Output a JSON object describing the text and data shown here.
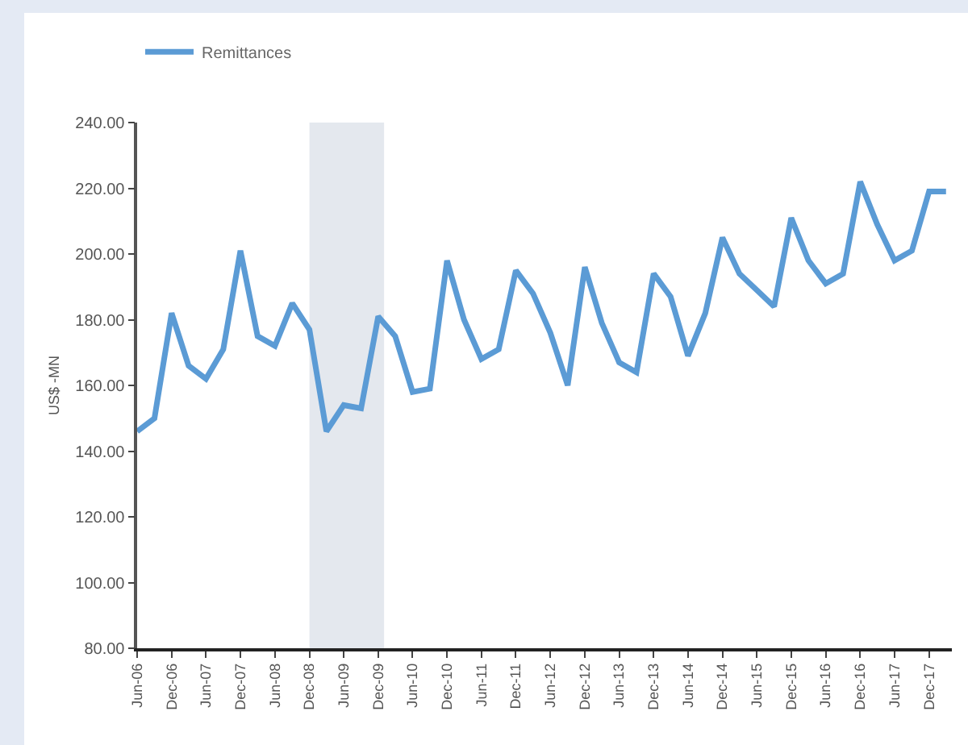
{
  "chart_data": {
    "type": "line",
    "ylabel": "US$ -MN",
    "x": [
      "2006-06",
      "2006-09",
      "2006-12",
      "2007-03",
      "2007-06",
      "2007-09",
      "2007-12",
      "2008-03",
      "2008-06",
      "2008-09",
      "2008-12",
      "2009-03",
      "2009-06",
      "2009-09",
      "2009-12",
      "2010-03",
      "2010-06",
      "2010-09",
      "2010-12",
      "2011-03",
      "2011-06",
      "2011-09",
      "2011-12",
      "2012-03",
      "2012-06",
      "2012-09",
      "2012-12",
      "2013-03",
      "2013-06",
      "2013-09",
      "2013-12",
      "2014-03",
      "2014-06",
      "2014-09",
      "2014-12",
      "2015-03",
      "2015-06",
      "2015-09",
      "2015-12",
      "2016-03",
      "2016-06",
      "2016-09",
      "2016-12",
      "2017-03",
      "2017-06",
      "2017-09",
      "2017-12",
      "2018-03"
    ],
    "series": [
      {
        "name": "Remittances",
        "color": "#5b9bd5",
        "values": [
          146,
          150,
          182,
          166,
          162,
          171,
          201,
          175,
          172,
          185,
          177,
          146,
          154,
          153,
          181,
          175,
          158,
          159,
          198,
          180,
          168,
          171,
          195,
          188,
          176,
          160,
          196,
          179,
          167,
          164,
          194,
          187,
          169,
          182,
          205,
          194,
          189,
          184,
          211,
          198,
          191,
          194,
          222,
          209,
          198,
          201,
          219,
          219
        ]
      }
    ],
    "xlim": [
      "2006-06",
      "2018-04"
    ],
    "xticks": [
      {
        "value": "2006-06",
        "label": "Jun-06"
      },
      {
        "value": "2006-12",
        "label": "Dec-06"
      },
      {
        "value": "2007-06",
        "label": "Jun-07"
      },
      {
        "value": "2007-12",
        "label": "Dec-07"
      },
      {
        "value": "2008-06",
        "label": "Jun-08"
      },
      {
        "value": "2008-12",
        "label": "Dec-08"
      },
      {
        "value": "2009-06",
        "label": "Jun-09"
      },
      {
        "value": "2009-12",
        "label": "Dec-09"
      },
      {
        "value": "2010-06",
        "label": "Jun-10"
      },
      {
        "value": "2010-12",
        "label": "Dec-10"
      },
      {
        "value": "2011-06",
        "label": "Jun-11"
      },
      {
        "value": "2011-12",
        "label": "Dec-11"
      },
      {
        "value": "2012-06",
        "label": "Jun-12"
      },
      {
        "value": "2012-12",
        "label": "Dec-12"
      },
      {
        "value": "2013-06",
        "label": "Jun-13"
      },
      {
        "value": "2013-12",
        "label": "Dec-13"
      },
      {
        "value": "2014-06",
        "label": "Jun-14"
      },
      {
        "value": "2014-12",
        "label": "Dec-14"
      },
      {
        "value": "2015-06",
        "label": "Jun-15"
      },
      {
        "value": "2015-12",
        "label": "Dec-15"
      },
      {
        "value": "2016-06",
        "label": "Jun-16"
      },
      {
        "value": "2016-12",
        "label": "Dec-16"
      },
      {
        "value": "2017-06",
        "label": "Jun-17"
      },
      {
        "value": "2017-12",
        "label": "Dec-17"
      }
    ],
    "ylim": [
      80,
      240
    ],
    "yticks": [
      {
        "value": 80,
        "label": "80.00"
      },
      {
        "value": 100,
        "label": "100.00"
      },
      {
        "value": 120,
        "label": "120.00"
      },
      {
        "value": 140,
        "label": "140.00"
      },
      {
        "value": 160,
        "label": "160.00"
      },
      {
        "value": 180,
        "label": "180.00"
      },
      {
        "value": 200,
        "label": "200.00"
      },
      {
        "value": 220,
        "label": "220.00"
      },
      {
        "value": 240,
        "label": "240.00"
      }
    ],
    "bands": [
      {
        "axis": "x",
        "from": "2008-12",
        "to": "2010-01",
        "color": "#e4e8ee"
      }
    ],
    "grid": false,
    "legend": "top left",
    "marker": "none",
    "line_style": "solid"
  }
}
